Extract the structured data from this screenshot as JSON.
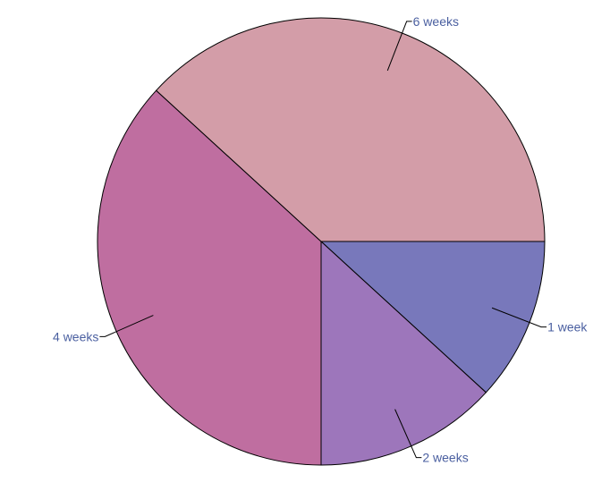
{
  "chart_data": {
    "type": "pie",
    "title": "",
    "slices": [
      {
        "label": "1 week",
        "value": 11.8,
        "color": "#7878bb"
      },
      {
        "label": "2 weeks",
        "value": 13.2,
        "color": "#9d76bb"
      },
      {
        "label": "4 weeks",
        "value": 36.8,
        "color": "#bf6ea0"
      },
      {
        "label": "6 weeks",
        "value": 38.2,
        "color": "#d39da8"
      }
    ],
    "start_angle_deg": 0,
    "direction": "clockwise",
    "outline_color": "#000000",
    "label_color": "#4a5fa0",
    "leader_color": "#000000"
  }
}
